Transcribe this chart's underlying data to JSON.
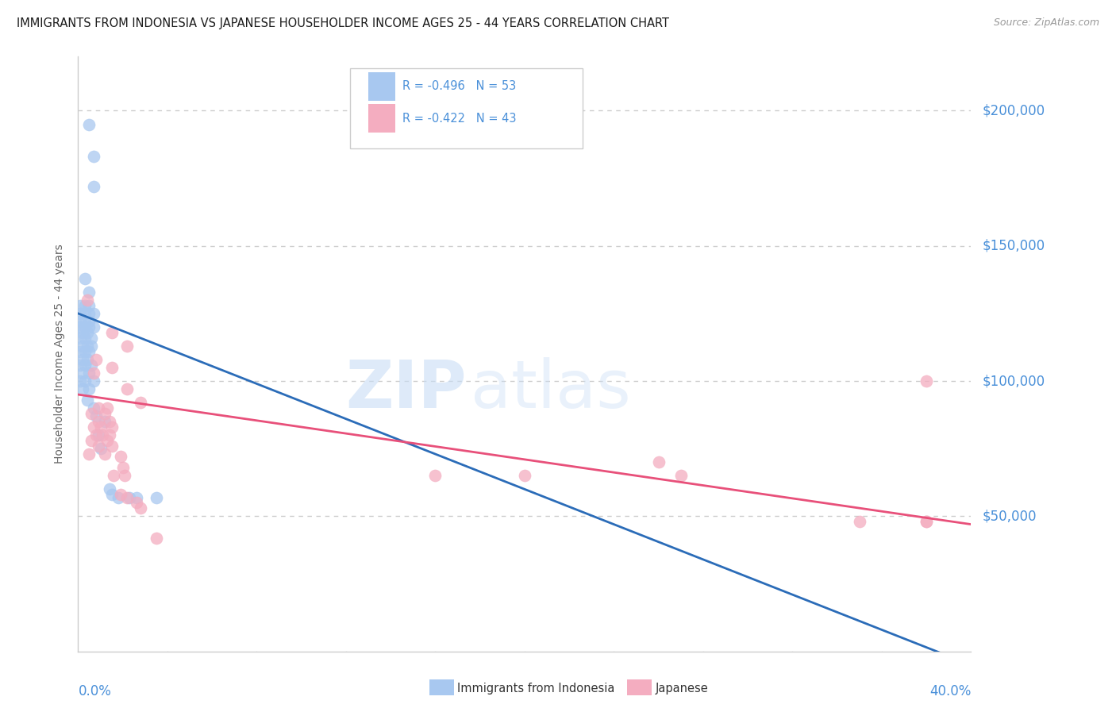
{
  "title": "IMMIGRANTS FROM INDONESIA VS JAPANESE HOUSEHOLDER INCOME AGES 25 - 44 YEARS CORRELATION CHART",
  "source": "Source: ZipAtlas.com",
  "ylabel": "Householder Income Ages 25 - 44 years",
  "y_labels": [
    "$200,000",
    "$150,000",
    "$100,000",
    "$50,000"
  ],
  "y_values": [
    200000,
    150000,
    100000,
    50000
  ],
  "blue_color": "#a8c8f0",
  "pink_color": "#f4adc0",
  "blue_line_color": "#2b6cb8",
  "pink_line_color": "#e8507a",
  "blue_scatter": [
    [
      0.005,
      195000
    ],
    [
      0.007,
      183000
    ],
    [
      0.007,
      172000
    ],
    [
      0.003,
      138000
    ],
    [
      0.005,
      133000
    ],
    [
      0.001,
      128000
    ],
    [
      0.003,
      128000
    ],
    [
      0.005,
      128000
    ],
    [
      0.001,
      125000
    ],
    [
      0.003,
      125000
    ],
    [
      0.005,
      125000
    ],
    [
      0.007,
      125000
    ],
    [
      0.001,
      122000
    ],
    [
      0.003,
      122000
    ],
    [
      0.005,
      122000
    ],
    [
      0.001,
      120000
    ],
    [
      0.003,
      120000
    ],
    [
      0.005,
      120000
    ],
    [
      0.007,
      120000
    ],
    [
      0.002,
      118000
    ],
    [
      0.004,
      118000
    ],
    [
      0.001,
      116000
    ],
    [
      0.003,
      116000
    ],
    [
      0.006,
      116000
    ],
    [
      0.002,
      113000
    ],
    [
      0.004,
      113000
    ],
    [
      0.006,
      113000
    ],
    [
      0.001,
      111000
    ],
    [
      0.003,
      111000
    ],
    [
      0.005,
      111000
    ],
    [
      0.002,
      108000
    ],
    [
      0.004,
      108000
    ],
    [
      0.001,
      106000
    ],
    [
      0.003,
      106000
    ],
    [
      0.006,
      106000
    ],
    [
      0.002,
      103000
    ],
    [
      0.005,
      103000
    ],
    [
      0.001,
      100000
    ],
    [
      0.003,
      100000
    ],
    [
      0.007,
      100000
    ],
    [
      0.002,
      97000
    ],
    [
      0.005,
      97000
    ],
    [
      0.004,
      93000
    ],
    [
      0.007,
      90000
    ],
    [
      0.008,
      87000
    ],
    [
      0.012,
      85000
    ],
    [
      0.009,
      80000
    ],
    [
      0.01,
      75000
    ],
    [
      0.014,
      60000
    ],
    [
      0.015,
      58000
    ],
    [
      0.018,
      57000
    ],
    [
      0.023,
      57000
    ],
    [
      0.026,
      57000
    ],
    [
      0.035,
      57000
    ]
  ],
  "pink_scatter": [
    [
      0.004,
      130000
    ],
    [
      0.015,
      118000
    ],
    [
      0.022,
      113000
    ],
    [
      0.008,
      108000
    ],
    [
      0.015,
      105000
    ],
    [
      0.007,
      103000
    ],
    [
      0.022,
      97000
    ],
    [
      0.028,
      92000
    ],
    [
      0.009,
      90000
    ],
    [
      0.013,
      90000
    ],
    [
      0.006,
      88000
    ],
    [
      0.012,
      88000
    ],
    [
      0.009,
      85000
    ],
    [
      0.014,
      85000
    ],
    [
      0.007,
      83000
    ],
    [
      0.01,
      83000
    ],
    [
      0.015,
      83000
    ],
    [
      0.008,
      80000
    ],
    [
      0.011,
      80000
    ],
    [
      0.014,
      80000
    ],
    [
      0.006,
      78000
    ],
    [
      0.013,
      78000
    ],
    [
      0.009,
      76000
    ],
    [
      0.015,
      76000
    ],
    [
      0.005,
      73000
    ],
    [
      0.012,
      73000
    ],
    [
      0.019,
      72000
    ],
    [
      0.02,
      68000
    ],
    [
      0.016,
      65000
    ],
    [
      0.021,
      65000
    ],
    [
      0.019,
      58000
    ],
    [
      0.022,
      57000
    ],
    [
      0.026,
      55000
    ],
    [
      0.028,
      53000
    ],
    [
      0.035,
      42000
    ],
    [
      0.16,
      65000
    ],
    [
      0.2,
      65000
    ],
    [
      0.26,
      70000
    ],
    [
      0.27,
      65000
    ],
    [
      0.35,
      48000
    ],
    [
      0.38,
      48000
    ],
    [
      0.38,
      100000
    ],
    [
      0.38,
      48000
    ]
  ],
  "blue_line": [
    [
      0.0,
      125000
    ],
    [
      0.4,
      -5000
    ]
  ],
  "pink_line": [
    [
      0.0,
      95000
    ],
    [
      0.4,
      47000
    ]
  ],
  "watermark_zip": "ZIP",
  "watermark_atlas": "atlas",
  "xmin": 0.0,
  "xmax": 0.4,
  "ymin": 0,
  "ymax": 220000,
  "title_color": "#1a1a1a",
  "source_color": "#999999",
  "grid_color": "#cccccc",
  "tick_label_color": "#4a90d9",
  "legend_text_color": "#4a90d9",
  "legend_label_blue": "Immigrants from Indonesia",
  "legend_label_pink": "Japanese",
  "x_ticks": [
    0.0,
    0.04,
    0.08,
    0.12,
    0.16,
    0.2,
    0.24,
    0.28,
    0.32,
    0.36,
    0.4
  ],
  "x_tick_labels_show": [
    "0.0%",
    "40.0%"
  ]
}
